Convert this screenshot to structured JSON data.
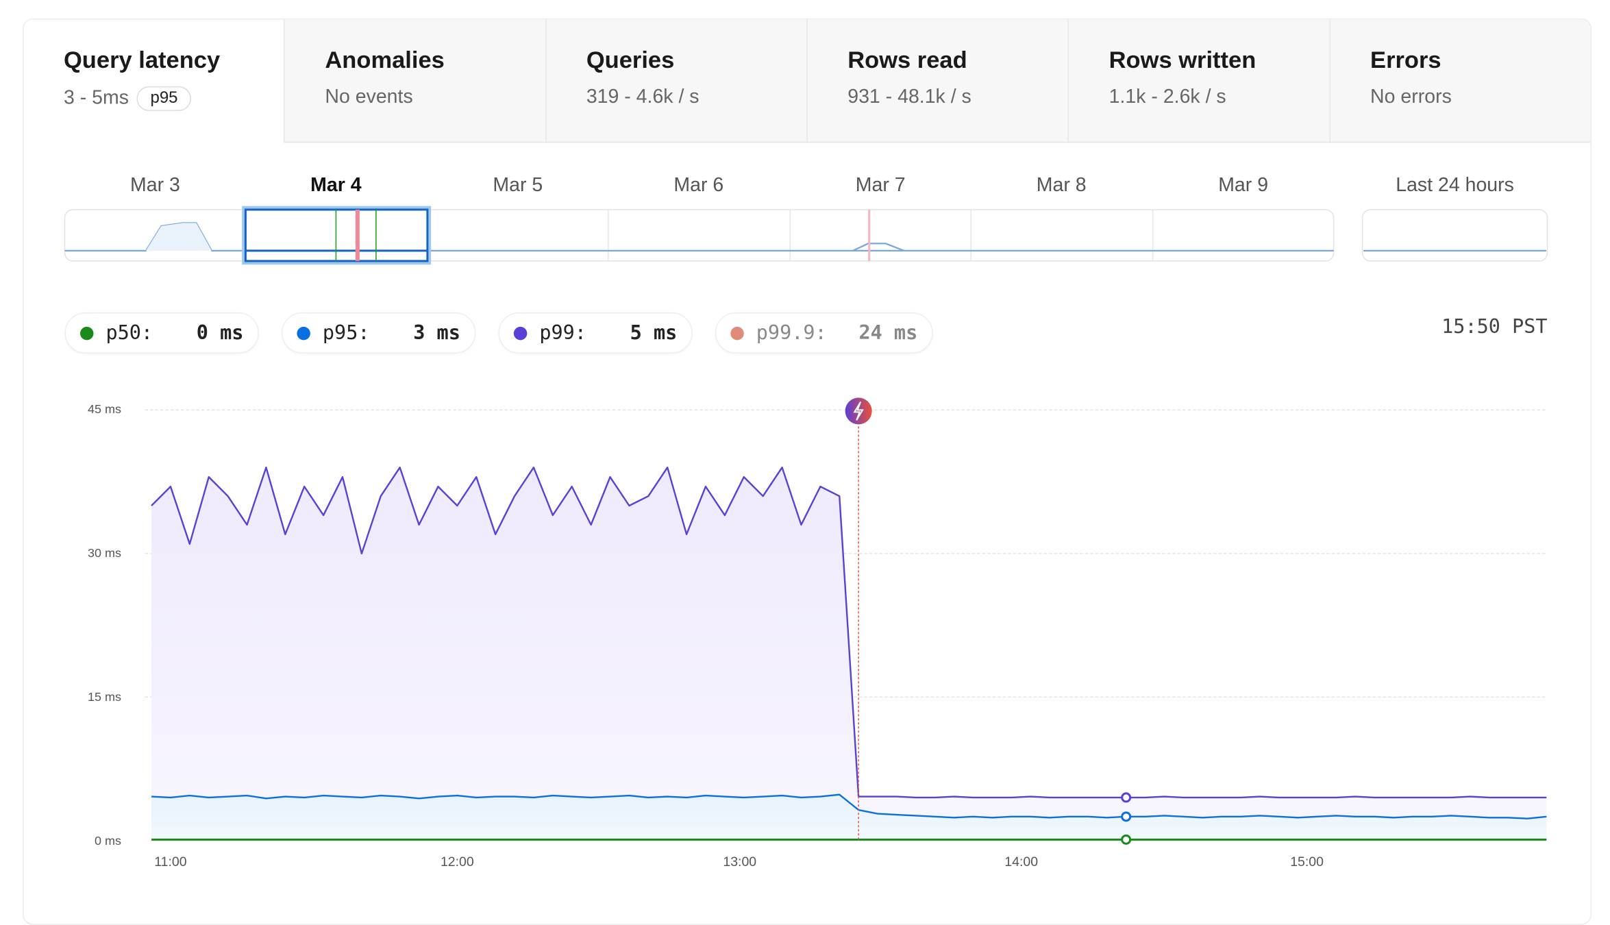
{
  "tabs": [
    {
      "title": "Query latency",
      "sub": "3 - 5ms",
      "badge": "p95",
      "active": true
    },
    {
      "title": "Anomalies",
      "sub": "No events"
    },
    {
      "title": "Queries",
      "sub": "319 - 4.6k / s"
    },
    {
      "title": "Rows read",
      "sub": "931 - 48.1k / s"
    },
    {
      "title": "Rows written",
      "sub": "1.1k - 2.6k / s"
    },
    {
      "title": "Errors",
      "sub": "No errors"
    }
  ],
  "timeline": {
    "days": [
      "Mar 3",
      "Mar 4",
      "Mar 5",
      "Mar 6",
      "Mar 7",
      "Mar 8",
      "Mar 9"
    ],
    "selected": "Mar 4",
    "last24": "Last 24 hours"
  },
  "legend": [
    {
      "label": "p50:",
      "value": "0 ms",
      "color": "#1a8a1a"
    },
    {
      "label": "p95:",
      "value": "3 ms",
      "color": "#0a6fe0"
    },
    {
      "label": "p99:",
      "value": "5 ms",
      "color": "#5b3fd6"
    },
    {
      "label": "p99.9:",
      "value": "24 ms",
      "color": "#e08a78",
      "muted": true
    }
  ],
  "clock": "15:50 PST",
  "event_icon": "lightning-bolt-icon",
  "chart_data": {
    "type": "line",
    "ylim": [
      0,
      45
    ],
    "yticks": [
      "0 ms",
      "15 ms",
      "30 ms",
      "45 ms"
    ],
    "ytick_values": [
      0,
      15,
      30,
      45
    ],
    "xticks": [
      "11:00",
      "12:00",
      "13:00",
      "14:00",
      "15:00"
    ],
    "grid": true,
    "event_time": "13:24",
    "hover_time": "14:20",
    "x": [
      "10:56",
      "11:00",
      "11:04",
      "11:08",
      "11:12",
      "11:16",
      "11:20",
      "11:24",
      "11:28",
      "11:32",
      "11:36",
      "11:40",
      "11:44",
      "11:48",
      "11:52",
      "11:56",
      "12:00",
      "12:04",
      "12:08",
      "12:12",
      "12:16",
      "12:20",
      "12:24",
      "12:28",
      "12:32",
      "12:36",
      "12:40",
      "12:44",
      "12:48",
      "12:52",
      "12:56",
      "13:00",
      "13:04",
      "13:08",
      "13:12",
      "13:16",
      "13:20",
      "13:24",
      "13:28",
      "13:32",
      "13:36",
      "13:40",
      "13:44",
      "13:48",
      "13:52",
      "13:56",
      "14:00",
      "14:04",
      "14:08",
      "14:12",
      "14:16",
      "14:20",
      "14:24",
      "14:28",
      "14:32",
      "14:36",
      "14:40",
      "14:44",
      "14:48",
      "14:52",
      "14:56",
      "15:00",
      "15:04",
      "15:08",
      "15:12",
      "15:16",
      "15:20",
      "15:24",
      "15:28",
      "15:32",
      "15:36",
      "15:40",
      "15:44",
      "15:48"
    ],
    "series": [
      {
        "name": "p99",
        "color": "#5b3fd6",
        "values": [
          35,
          37,
          31,
          38,
          36,
          33,
          39,
          32,
          37,
          34,
          38,
          30,
          36,
          39,
          33,
          37,
          35,
          38,
          32,
          36,
          39,
          34,
          37,
          33,
          38,
          35,
          36,
          39,
          32,
          37,
          34,
          38,
          36,
          39,
          33,
          37,
          36,
          4.6,
          4.6,
          4.6,
          4.5,
          4.5,
          4.6,
          4.5,
          4.5,
          4.5,
          4.6,
          4.5,
          4.5,
          4.5,
          4.5,
          4.5,
          4.5,
          4.6,
          4.5,
          4.5,
          4.5,
          4.5,
          4.6,
          4.5,
          4.5,
          4.5,
          4.5,
          4.6,
          4.5,
          4.5,
          4.5,
          4.5,
          4.5,
          4.6,
          4.5,
          4.5,
          4.5,
          4.5
        ]
      },
      {
        "name": "p95",
        "color": "#0a6fe0",
        "values": [
          4.6,
          4.5,
          4.7,
          4.5,
          4.6,
          4.7,
          4.4,
          4.6,
          4.5,
          4.7,
          4.6,
          4.5,
          4.7,
          4.6,
          4.4,
          4.6,
          4.7,
          4.5,
          4.6,
          4.6,
          4.5,
          4.7,
          4.6,
          4.5,
          4.6,
          4.7,
          4.5,
          4.6,
          4.5,
          4.7,
          4.6,
          4.5,
          4.6,
          4.7,
          4.5,
          4.6,
          4.8,
          3.2,
          2.8,
          2.7,
          2.6,
          2.5,
          2.4,
          2.5,
          2.4,
          2.5,
          2.5,
          2.4,
          2.5,
          2.5,
          2.4,
          2.5,
          2.5,
          2.6,
          2.5,
          2.4,
          2.5,
          2.5,
          2.6,
          2.5,
          2.4,
          2.5,
          2.6,
          2.5,
          2.5,
          2.4,
          2.5,
          2.5,
          2.6,
          2.5,
          2.4,
          2.4,
          2.3,
          2.5
        ]
      },
      {
        "name": "p50",
        "color": "#1a8a1a",
        "values": [
          0.1,
          0.1,
          0.1,
          0.1,
          0.1,
          0.1,
          0.1,
          0.1,
          0.1,
          0.1,
          0.1,
          0.1,
          0.1,
          0.1,
          0.1,
          0.1,
          0.1,
          0.1,
          0.1,
          0.1,
          0.1,
          0.1,
          0.1,
          0.1,
          0.1,
          0.1,
          0.1,
          0.1,
          0.1,
          0.1,
          0.1,
          0.1,
          0.1,
          0.1,
          0.1,
          0.1,
          0.1,
          0.1,
          0.1,
          0.1,
          0.1,
          0.1,
          0.1,
          0.1,
          0.1,
          0.1,
          0.1,
          0.1,
          0.1,
          0.1,
          0.1,
          0.1,
          0.1,
          0.1,
          0.1,
          0.1,
          0.1,
          0.1,
          0.1,
          0.1,
          0.1,
          0.1,
          0.1,
          0.1,
          0.1,
          0.1,
          0.1,
          0.1,
          0.1,
          0.1,
          0.1,
          0.1,
          0.1,
          0.1
        ]
      }
    ]
  }
}
